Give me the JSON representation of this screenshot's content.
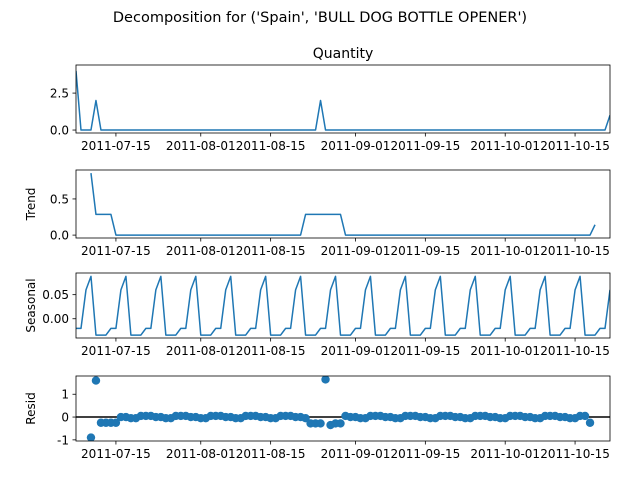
{
  "figure": {
    "suptitle": "Decomposition for ('Spain', 'BULL DOG BOTTLE OPENER')"
  },
  "chart_data": [
    {
      "type": "line",
      "id": "observed",
      "title": "Quantity",
      "ylabel": "",
      "xlim": [
        "2011-07-07",
        "2011-10-22"
      ],
      "ylim": [
        -0.2,
        4.4
      ],
      "yticks": [
        "0.0",
        "2.5"
      ],
      "xticks": [
        "2011-07-15",
        "2011-08-01",
        "2011-08-15",
        "2011-09-01",
        "2011-09-15",
        "2011-10-01",
        "2011-10-15"
      ],
      "points": [
        [
          "2011-07-07",
          4
        ],
        [
          "2011-07-08",
          0
        ],
        [
          "2011-07-10",
          0
        ],
        [
          "2011-07-11",
          2
        ],
        [
          "2011-07-12",
          0
        ],
        [
          "2011-08-24",
          0
        ],
        [
          "2011-08-25",
          2
        ],
        [
          "2011-08-26",
          0
        ],
        [
          "2011-10-21",
          0
        ],
        [
          "2011-10-22",
          1
        ]
      ],
      "color": "#1f77b4"
    },
    {
      "type": "line",
      "id": "trend",
      "ylabel": "Trend",
      "xlim": [
        "2011-07-07",
        "2011-10-22"
      ],
      "ylim": [
        -0.04,
        0.9
      ],
      "yticks": [
        "0.0",
        "0.5"
      ],
      "xticks": [
        "2011-07-15",
        "2011-08-01",
        "2011-08-15",
        "2011-09-01",
        "2011-09-15",
        "2011-10-01",
        "2011-10-15"
      ],
      "points": [
        [
          "2011-07-10",
          0.857
        ],
        [
          "2011-07-11",
          0.286
        ],
        [
          "2011-07-14",
          0.286
        ],
        [
          "2011-07-15",
          0.0
        ],
        [
          "2011-08-21",
          0.0
        ],
        [
          "2011-08-22",
          0.286
        ],
        [
          "2011-08-29",
          0.286
        ],
        [
          "2011-08-30",
          0.0
        ],
        [
          "2011-10-18",
          0.0
        ],
        [
          "2011-10-19",
          0.143
        ]
      ],
      "color": "#1f77b4"
    },
    {
      "type": "line",
      "id": "seasonal",
      "ylabel": "Seasonal",
      "xlim": [
        "2011-07-07",
        "2011-10-22"
      ],
      "ylim": [
        -0.04,
        0.095
      ],
      "yticks": [
        "0.00",
        "0.05"
      ],
      "xticks": [
        "2011-07-15",
        "2011-08-01",
        "2011-08-15",
        "2011-09-01",
        "2011-09-15",
        "2011-10-01",
        "2011-10-15"
      ],
      "start": "2011-07-07",
      "end": "2011-10-22",
      "period_values": [
        -0.02,
        -0.02,
        0.06,
        0.088,
        -0.034,
        -0.034,
        -0.034
      ],
      "color": "#1f77b4"
    },
    {
      "type": "scatter",
      "id": "resid",
      "ylabel": "Resid",
      "xlim": [
        "2011-07-07",
        "2011-10-22"
      ],
      "ylim": [
        -1.05,
        1.8
      ],
      "yticks": [
        "-1",
        "0",
        "1"
      ],
      "xticks": [
        "2011-07-15",
        "2011-08-01",
        "2011-08-15",
        "2011-09-01",
        "2011-09-15",
        "2011-10-01",
        "2011-10-15"
      ],
      "zero_line": true,
      "start": "2011-07-10",
      "end": "2011-10-19",
      "values": [
        -0.9,
        1.6,
        -0.25,
        -0.25,
        -0.25,
        -0.25,
        0.0,
        0.0,
        -0.05,
        -0.05,
        0.05,
        0.05,
        0.05,
        0.0,
        0.0,
        -0.05,
        -0.05,
        0.05,
        0.05,
        0.05,
        0.0,
        0.0,
        -0.05,
        -0.05,
        0.05,
        0.05,
        0.05,
        0.0,
        0.0,
        -0.05,
        -0.05,
        0.05,
        0.05,
        0.05,
        0.0,
        0.0,
        -0.05,
        -0.05,
        0.05,
        0.05,
        0.05,
        0.0,
        0.0,
        -0.05,
        -0.28,
        -0.28,
        -0.28,
        1.65,
        -0.35,
        -0.28,
        -0.28,
        0.05,
        0.0,
        0.0,
        -0.05,
        -0.05,
        0.05,
        0.05,
        0.05,
        0.0,
        0.0,
        -0.05,
        -0.05,
        0.05,
        0.05,
        0.05,
        0.0,
        0.0,
        -0.05,
        -0.05,
        0.05,
        0.05,
        0.05,
        0.0,
        0.0,
        -0.05,
        -0.05,
        0.05,
        0.05,
        0.05,
        0.0,
        0.0,
        -0.05,
        -0.05,
        0.05,
        0.05,
        0.05,
        0.0,
        0.0,
        -0.05,
        -0.05,
        0.05,
        0.05,
        0.05,
        0.0,
        0.0,
        -0.05,
        -0.05,
        0.05,
        0.05,
        -0.25
      ],
      "color": "#1f77b4"
    }
  ]
}
